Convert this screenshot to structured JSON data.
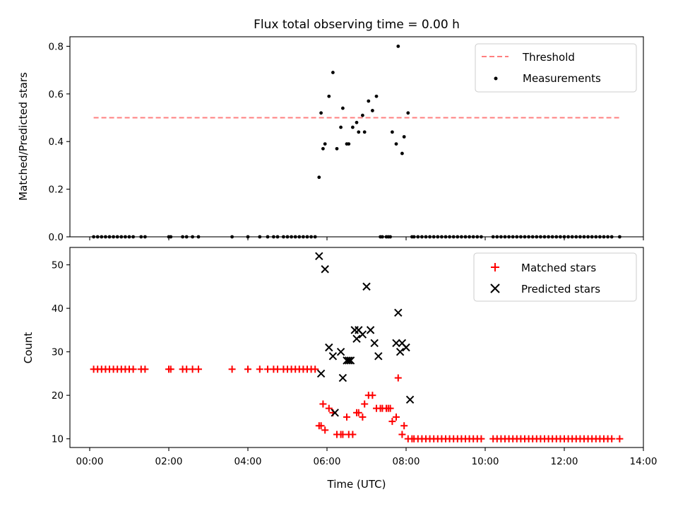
{
  "chart_data": [
    {
      "panel": "top",
      "type": "scatter",
      "title": "Flux total observing time = 0.00 h",
      "xlabel": "",
      "ylabel": "Matched/Predicted stars",
      "xlim": [
        -0.5,
        14.0
      ],
      "ylim": [
        0.0,
        0.84
      ],
      "yticks": [
        0.0,
        0.2,
        0.4,
        0.6,
        0.8
      ],
      "ytick_labels": [
        "0.0",
        "0.2",
        "0.4",
        "0.6",
        "0.8"
      ],
      "legend_position": "upper right",
      "threshold": {
        "name": "Threshold",
        "value": 0.5,
        "x_range": [
          0.1,
          13.4
        ],
        "color": "#ff7f7f",
        "style": "dashed"
      },
      "series": [
        {
          "name": "Measurements",
          "color": "#000000",
          "marker": "dot",
          "x": [
            0.1,
            0.2,
            0.3,
            0.4,
            0.5,
            0.6,
            0.7,
            0.8,
            0.9,
            1.0,
            1.1,
            1.3,
            1.4,
            2.0,
            2.05,
            2.35,
            2.45,
            2.6,
            2.75,
            3.6,
            4.0,
            4.3,
            4.5,
            4.65,
            4.75,
            4.9,
            5.0,
            5.1,
            5.2,
            5.3,
            5.4,
            5.5,
            5.6,
            5.7,
            5.8,
            5.85,
            5.9,
            5.95,
            6.05,
            6.15,
            6.25,
            6.35,
            6.4,
            6.5,
            6.55,
            6.65,
            6.75,
            6.8,
            6.9,
            6.95,
            7.05,
            7.15,
            7.25,
            7.35,
            7.4,
            7.5,
            7.55,
            7.6,
            7.65,
            7.75,
            7.8,
            7.9,
            7.95,
            8.05,
            8.15,
            8.2,
            8.3,
            8.4,
            8.5,
            8.6,
            8.7,
            8.8,
            8.9,
            9.0,
            9.1,
            9.2,
            9.3,
            9.4,
            9.5,
            9.6,
            9.7,
            9.8,
            9.9,
            10.2,
            10.3,
            10.4,
            10.5,
            10.6,
            10.7,
            10.8,
            10.9,
            11.0,
            11.1,
            11.2,
            11.3,
            11.4,
            11.5,
            11.6,
            11.7,
            11.8,
            11.9,
            12.0,
            12.1,
            12.2,
            12.3,
            12.4,
            12.5,
            12.6,
            12.7,
            12.8,
            12.9,
            13.0,
            13.1,
            13.2,
            13.4
          ],
          "y": [
            0,
            0,
            0,
            0,
            0,
            0,
            0,
            0,
            0,
            0,
            0,
            0,
            0,
            0,
            0,
            0,
            0,
            0,
            0,
            0,
            0,
            0,
            0,
            0,
            0,
            0,
            0,
            0,
            0,
            0,
            0,
            0,
            0,
            0,
            0.25,
            0.52,
            0.37,
            0.39,
            0.59,
            0.69,
            0.37,
            0.46,
            0.54,
            0.39,
            0.39,
            0.46,
            0.48,
            0.44,
            0.51,
            0.44,
            0.57,
            0.53,
            0.59,
            0,
            0,
            0,
            0,
            0,
            0.44,
            0.39,
            0.8,
            0.35,
            0.42,
            0.52,
            0,
            0,
            0,
            0,
            0,
            0,
            0,
            0,
            0,
            0,
            0,
            0,
            0,
            0,
            0,
            0,
            0,
            0,
            0,
            0,
            0,
            0,
            0,
            0,
            0,
            0,
            0,
            0,
            0,
            0,
            0,
            0,
            0,
            0,
            0,
            0,
            0,
            0,
            0,
            0,
            0,
            0,
            0,
            0,
            0,
            0,
            0,
            0,
            0,
            0,
            0
          ]
        }
      ]
    },
    {
      "panel": "bottom",
      "type": "scatter",
      "title": "",
      "xlabel": "Time (UTC)",
      "ylabel": "Count",
      "xlim": [
        -0.5,
        14.0
      ],
      "ylim": [
        8,
        54
      ],
      "yticks": [
        10,
        20,
        30,
        40,
        50
      ],
      "ytick_labels": [
        "10",
        "20",
        "30",
        "40",
        "50"
      ],
      "xticks": [
        0,
        2,
        4,
        6,
        8,
        10,
        12,
        14
      ],
      "xtick_labels": [
        "00:00",
        "02:00",
        "04:00",
        "06:00",
        "08:00",
        "10:00",
        "12:00",
        "14:00"
      ],
      "legend_position": "upper right",
      "series": [
        {
          "name": "Matched stars",
          "color": "#ff0000",
          "marker": "plus",
          "x": [
            0.1,
            0.2,
            0.3,
            0.4,
            0.5,
            0.6,
            0.7,
            0.8,
            0.9,
            1.0,
            1.1,
            1.3,
            1.4,
            2.0,
            2.05,
            2.35,
            2.45,
            2.6,
            2.75,
            3.6,
            4.0,
            4.3,
            4.5,
            4.65,
            4.75,
            4.9,
            5.0,
            5.1,
            5.2,
            5.3,
            5.4,
            5.5,
            5.6,
            5.7,
            5.8,
            5.85,
            5.9,
            5.95,
            6.05,
            6.15,
            6.25,
            6.35,
            6.4,
            6.5,
            6.55,
            6.65,
            6.75,
            6.8,
            6.9,
            6.95,
            7.05,
            7.15,
            7.25,
            7.35,
            7.4,
            7.5,
            7.55,
            7.6,
            7.65,
            7.75,
            7.8,
            7.9,
            7.95,
            8.05,
            8.15,
            8.2,
            8.3,
            8.4,
            8.5,
            8.6,
            8.7,
            8.8,
            8.9,
            9.0,
            9.1,
            9.2,
            9.3,
            9.4,
            9.5,
            9.6,
            9.7,
            9.8,
            9.9,
            10.2,
            10.3,
            10.4,
            10.5,
            10.6,
            10.7,
            10.8,
            10.9,
            11.0,
            11.1,
            11.2,
            11.3,
            11.4,
            11.5,
            11.6,
            11.7,
            11.8,
            11.9,
            12.0,
            12.1,
            12.2,
            12.3,
            12.4,
            12.5,
            12.6,
            12.7,
            12.8,
            12.9,
            13.0,
            13.1,
            13.2,
            13.4
          ],
          "y": [
            26,
            26,
            26,
            26,
            26,
            26,
            26,
            26,
            26,
            26,
            26,
            26,
            26,
            26,
            26,
            26,
            26,
            26,
            26,
            26,
            26,
            26,
            26,
            26,
            26,
            26,
            26,
            26,
            26,
            26,
            26,
            26,
            26,
            26,
            13,
            13,
            18,
            12,
            17,
            16,
            11,
            11,
            11,
            15,
            11,
            11,
            16,
            16,
            15,
            18,
            20,
            20,
            17,
            17,
            17,
            17,
            17,
            17,
            14,
            15,
            24,
            11,
            13,
            10,
            10,
            10,
            10,
            10,
            10,
            10,
            10,
            10,
            10,
            10,
            10,
            10,
            10,
            10,
            10,
            10,
            10,
            10,
            10,
            10,
            10,
            10,
            10,
            10,
            10,
            10,
            10,
            10,
            10,
            10,
            10,
            10,
            10,
            10,
            10,
            10,
            10,
            10,
            10,
            10,
            10,
            10,
            10,
            10,
            10,
            10,
            10,
            10,
            10,
            10,
            10
          ]
        },
        {
          "name": "Predicted stars",
          "color": "#000000",
          "marker": "x",
          "x": [
            5.8,
            5.85,
            5.95,
            6.05,
            6.15,
            6.2,
            6.35,
            6.4,
            6.5,
            6.55,
            6.6,
            6.7,
            6.75,
            6.8,
            6.9,
            7.0,
            7.1,
            7.2,
            7.3,
            7.75,
            7.8,
            7.85,
            7.9,
            8.0,
            8.1
          ],
          "y": [
            52,
            25,
            49,
            31,
            29,
            16,
            30,
            24,
            28,
            28,
            28,
            35,
            33,
            35,
            34,
            45,
            35,
            32,
            29,
            32,
            39,
            30,
            32,
            31,
            19
          ]
        }
      ]
    }
  ]
}
